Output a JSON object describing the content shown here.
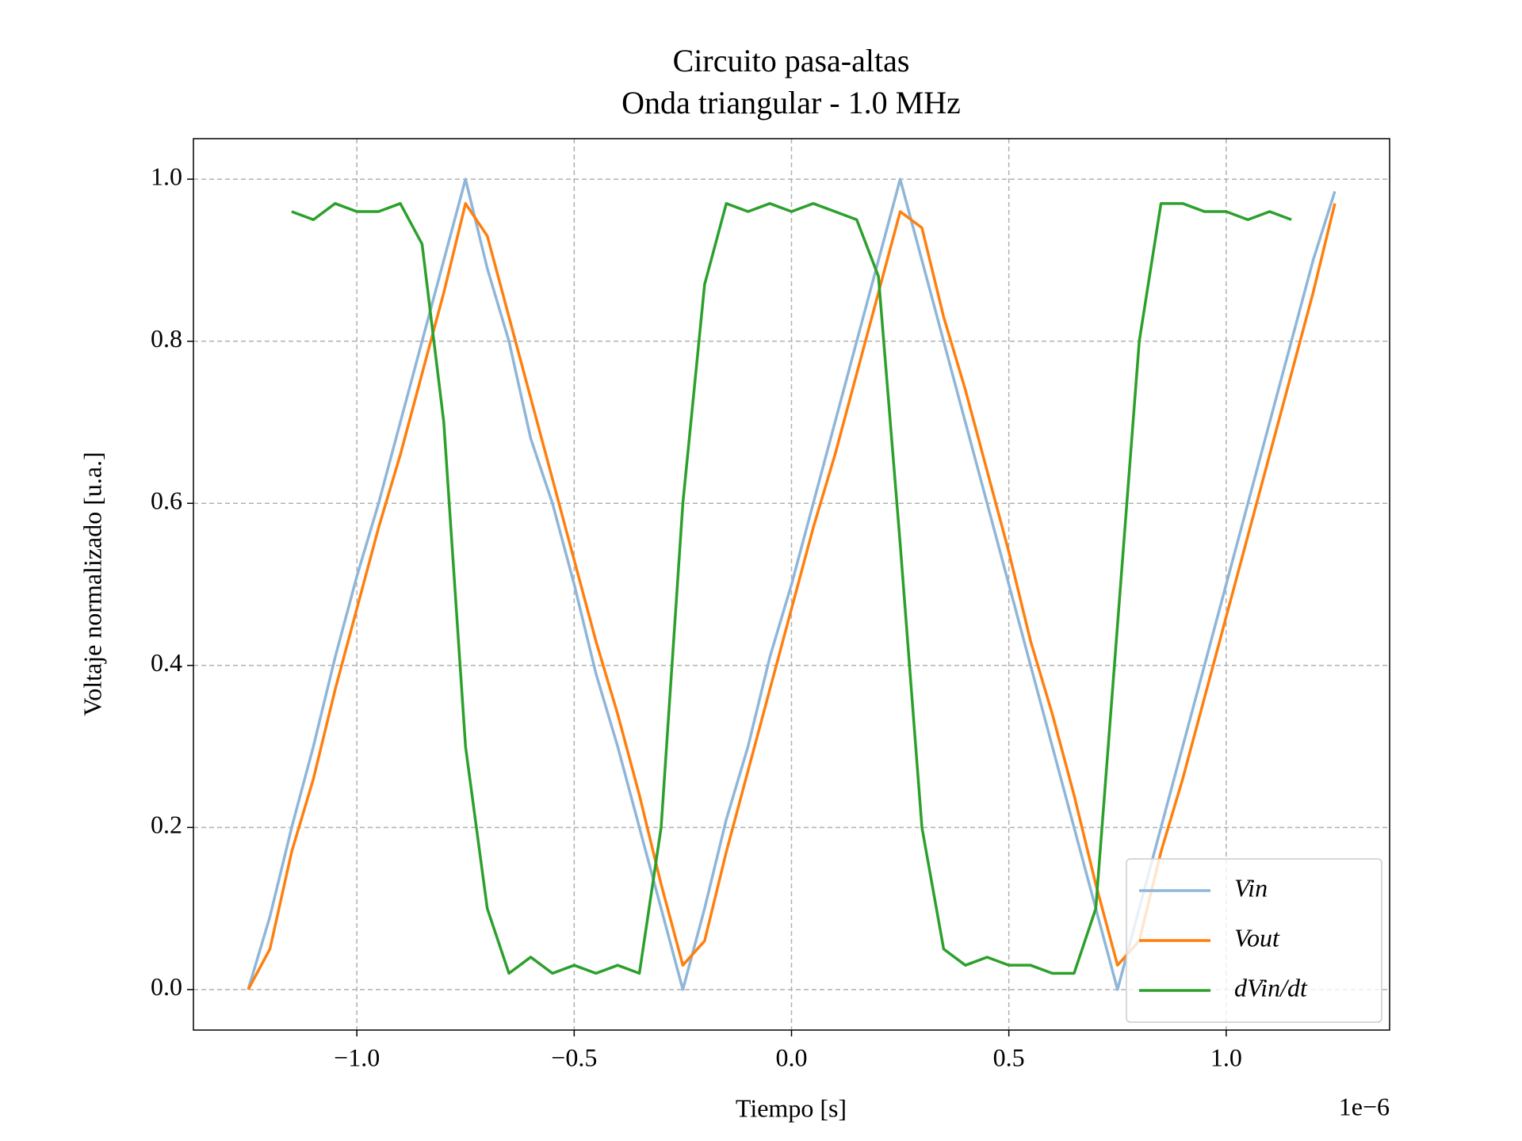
{
  "chart_data": {
    "type": "line",
    "title": "Circuito pasa-altas",
    "subtitle": "Onda triangular - 1.0 MHz",
    "x_label": "Tiempo [s]",
    "y_label": "Voltaje normalizado [u.a.]",
    "x_offset_label": "1e−6",
    "x": [
      -1.25e-06,
      -1.2e-06,
      -1.15e-06,
      -1.1e-06,
      -1.05e-06,
      -1e-06,
      -9.5e-07,
      -9e-07,
      -8.5e-07,
      -8e-07,
      -7.5e-07,
      -7e-07,
      -6.5e-07,
      -6e-07,
      -5.5e-07,
      -5e-07,
      -4.5e-07,
      -4e-07,
      -3.5e-07,
      -3e-07,
      -2.5e-07,
      -2e-07,
      -1.5e-07,
      -1e-07,
      -5e-08,
      0,
      5e-08,
      1e-07,
      1.5e-07,
      2e-07,
      2.5e-07,
      3e-07,
      3.5e-07,
      4e-07,
      4.5e-07,
      5e-07,
      5.5e-07,
      6e-07,
      6.5e-07,
      7e-07,
      7.5e-07,
      8e-07,
      8.5e-07,
      9e-07,
      9.5e-07,
      1e-06,
      1.05e-06,
      1.1e-06,
      1.15e-06,
      1.2e-06,
      1.25e-06
    ],
    "series": [
      {
        "name": "Vin",
        "color": "#8fb6d8",
        "values": [
          0,
          0.09,
          0.2,
          0.3,
          0.41,
          0.51,
          0.6,
          0.7,
          0.8,
          0.9,
          1.0,
          0.89,
          0.8,
          0.68,
          0.6,
          0.5,
          0.39,
          0.3,
          0.2,
          0.1,
          0.0,
          0.1,
          0.21,
          0.3,
          0.41,
          0.5,
          0.6,
          0.7,
          0.8,
          0.9,
          1.0,
          0.9,
          0.8,
          0.7,
          0.6,
          0.5,
          0.4,
          0.3,
          0.2,
          0.1,
          0.0,
          0.1,
          0.2,
          0.3,
          0.4,
          0.5,
          0.6,
          0.7,
          0.8,
          0.9,
          0.985
        ]
      },
      {
        "name": "Vout",
        "color": "#ff7f0e",
        "values": [
          0,
          0.05,
          0.17,
          0.26,
          0.37,
          0.47,
          0.57,
          0.66,
          0.76,
          0.86,
          0.97,
          0.93,
          0.83,
          0.73,
          0.63,
          0.53,
          0.43,
          0.34,
          0.24,
          0.13,
          0.03,
          0.06,
          0.17,
          0.27,
          0.37,
          0.47,
          0.57,
          0.66,
          0.76,
          0.86,
          0.96,
          0.94,
          0.83,
          0.74,
          0.64,
          0.54,
          0.43,
          0.34,
          0.24,
          0.13,
          0.03,
          0.06,
          0.17,
          0.26,
          0.36,
          0.46,
          0.56,
          0.66,
          0.76,
          0.86,
          0.97
        ]
      },
      {
        "name": "dVin/dt",
        "color": "#2ca02c",
        "values": [
          null,
          null,
          0.96,
          0.95,
          0.97,
          0.96,
          0.96,
          0.97,
          0.92,
          0.7,
          0.3,
          0.1,
          0.02,
          0.04,
          0.02,
          0.03,
          0.02,
          0.03,
          0.02,
          0.2,
          0.6,
          0.87,
          0.97,
          0.96,
          0.97,
          0.96,
          0.97,
          0.96,
          0.95,
          0.88,
          0.55,
          0.2,
          0.05,
          0.03,
          0.04,
          0.03,
          0.03,
          0.02,
          0.02,
          0.1,
          0.45,
          0.8,
          0.97,
          0.97,
          0.96,
          0.96,
          0.95,
          0.96,
          0.95,
          null,
          null
        ]
      }
    ],
    "xlim": [
      -1.376e-06,
      1.376e-06
    ],
    "ylim": [
      -0.05,
      1.05
    ],
    "xticks": [
      {
        "value": -1e-06,
        "label": "−1.0"
      },
      {
        "value": -5e-07,
        "label": "−0.5"
      },
      {
        "value": 0,
        "label": "0.0"
      },
      {
        "value": 5e-07,
        "label": "0.5"
      },
      {
        "value": 1e-06,
        "label": "1.0"
      }
    ],
    "yticks": [
      {
        "value": 0,
        "label": "0.0"
      },
      {
        "value": 0.2,
        "label": "0.2"
      },
      {
        "value": 0.4,
        "label": "0.4"
      },
      {
        "value": 0.6,
        "label": "0.6"
      },
      {
        "value": 0.8,
        "label": "0.8"
      },
      {
        "value": 1,
        "label": "1.0"
      }
    ],
    "grid": true,
    "legend": "lower right"
  }
}
